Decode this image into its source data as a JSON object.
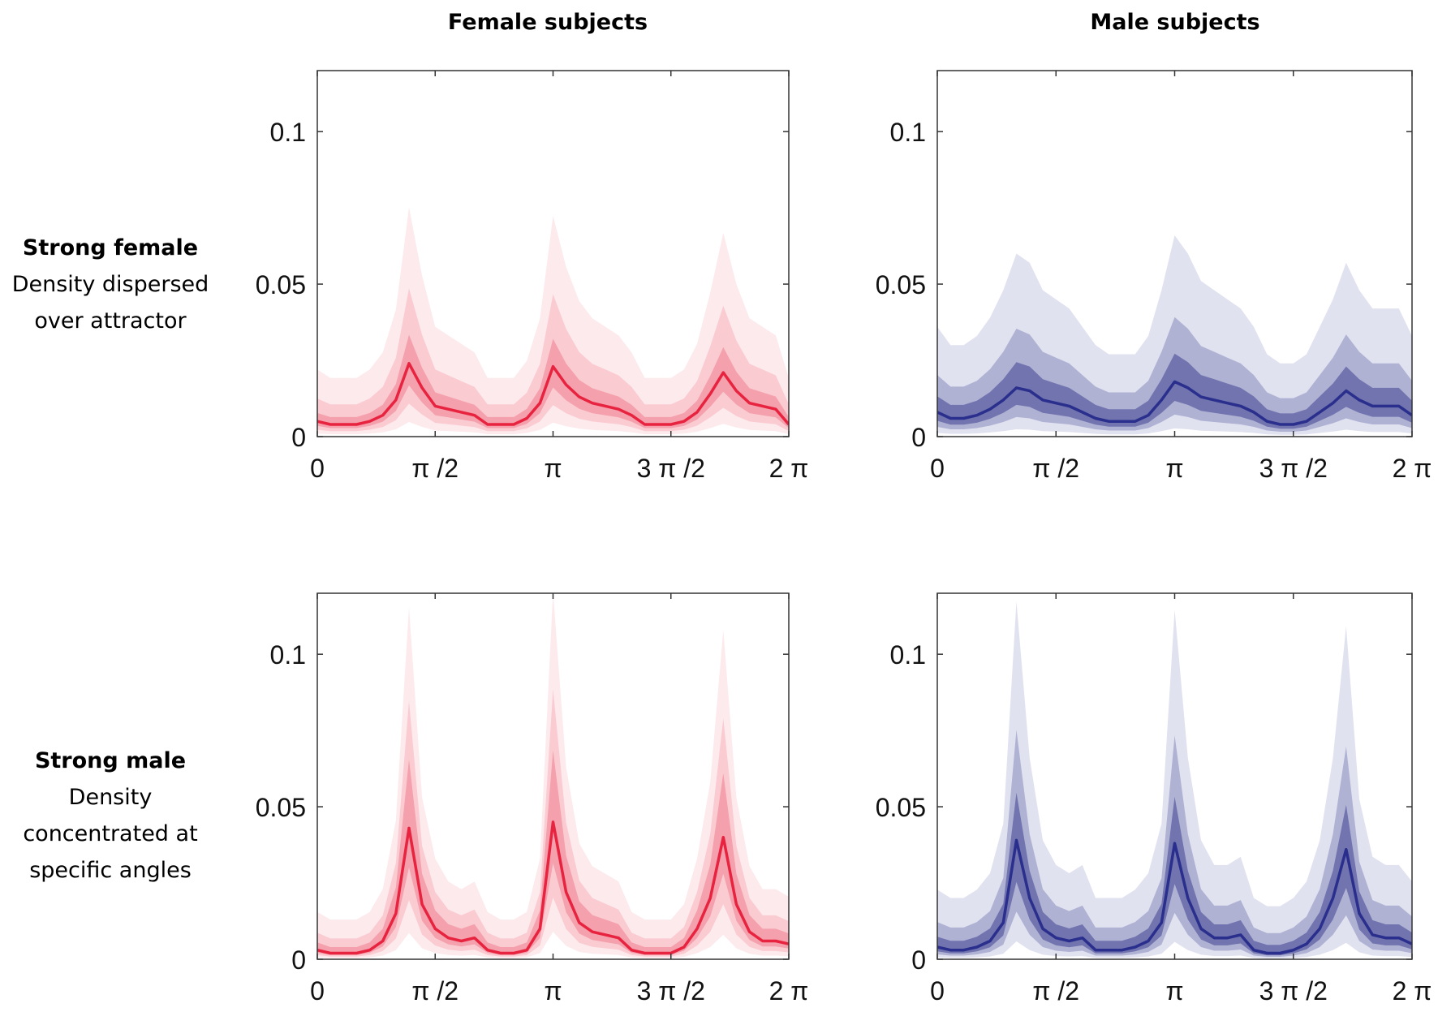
{
  "column_titles": [
    "Female subjects",
    "Male subjects"
  ],
  "row_labels": [
    {
      "title": "Strong female",
      "lines": [
        "Density dispersed",
        "over attractor"
      ]
    },
    {
      "title": "Strong male",
      "lines": [
        "Density",
        "concentrated at",
        "specific angles"
      ]
    }
  ],
  "colors": {
    "female": {
      "line": "#e8233f",
      "bands": [
        "#fdeaed",
        "#fbcbd2",
        "#f4a0ad"
      ]
    },
    "male": {
      "line": "#2a2e8c",
      "bands": [
        "#e1e2f0",
        "#b0b2d4",
        "#7174ae"
      ]
    }
  },
  "chart_data": [
    {
      "type": "area",
      "row": 0,
      "col": 0,
      "group": "female",
      "x_unit": "angle (rad), step = π/18",
      "xlim": [
        0,
        6.2832
      ],
      "ylim": [
        0,
        0.12
      ],
      "xticks": [
        {
          "value": 0,
          "label": "0"
        },
        {
          "value": 1.5708,
          "label": "π /2"
        },
        {
          "value": 3.1416,
          "label": "π"
        },
        {
          "value": 4.7124,
          "label": "3 π /2"
        },
        {
          "value": 6.2832,
          "label": "2 π"
        }
      ],
      "yticks": [
        {
          "value": 0,
          "label": "0"
        },
        {
          "value": 0.05,
          "label": "0.05"
        },
        {
          "value": 0.1,
          "label": "0.1"
        }
      ],
      "mean": [
        0.005,
        0.004,
        0.004,
        0.004,
        0.005,
        0.007,
        0.012,
        0.024,
        0.016,
        0.01,
        0.009,
        0.008,
        0.007,
        0.004,
        0.004,
        0.004,
        0.006,
        0.011,
        0.023,
        0.017,
        0.013,
        0.011,
        0.01,
        0.009,
        0.007,
        0.004,
        0.004,
        0.004,
        0.005,
        0.008,
        0.014,
        0.021,
        0.015,
        0.011,
        0.01,
        0.009,
        0.004
      ],
      "bands": [
        {
          "name": "outer",
          "hi_scale": 2.8,
          "hi_add": 0.008,
          "lo_scale": 0.2
        },
        {
          "name": "middle",
          "hi_scale": 1.9,
          "hi_add": 0.003,
          "lo_scale": 0.45
        },
        {
          "name": "inner",
          "hi_scale": 1.35,
          "hi_add": 0.001,
          "lo_scale": 0.7
        }
      ]
    },
    {
      "type": "area",
      "row": 0,
      "col": 1,
      "group": "male",
      "x_unit": "angle (rad), step = π/18",
      "xlim": [
        0,
        6.2832
      ],
      "ylim": [
        0,
        0.12
      ],
      "xticks": [
        {
          "value": 0,
          "label": "0"
        },
        {
          "value": 1.5708,
          "label": "π /2"
        },
        {
          "value": 3.1416,
          "label": "π"
        },
        {
          "value": 4.7124,
          "label": "3 π /2"
        },
        {
          "value": 6.2832,
          "label": "2 π"
        }
      ],
      "yticks": [
        {
          "value": 0,
          "label": "0"
        },
        {
          "value": 0.05,
          "label": "0.05"
        },
        {
          "value": 0.1,
          "label": "0.1"
        }
      ],
      "mean": [
        0.008,
        0.006,
        0.006,
        0.007,
        0.009,
        0.012,
        0.016,
        0.015,
        0.012,
        0.011,
        0.01,
        0.008,
        0.006,
        0.005,
        0.005,
        0.005,
        0.007,
        0.012,
        0.018,
        0.016,
        0.013,
        0.012,
        0.011,
        0.01,
        0.008,
        0.005,
        0.004,
        0.004,
        0.005,
        0.008,
        0.011,
        0.015,
        0.012,
        0.01,
        0.01,
        0.01,
        0.007
      ],
      "bands": [
        {
          "name": "outer",
          "hi_scale": 3.0,
          "hi_add": 0.012,
          "lo_scale": 0.15
        },
        {
          "name": "middle",
          "hi_scale": 1.9,
          "hi_add": 0.005,
          "lo_scale": 0.4
        },
        {
          "name": "inner",
          "hi_scale": 1.4,
          "hi_add": 0.002,
          "lo_scale": 0.65
        }
      ]
    },
    {
      "type": "area",
      "row": 1,
      "col": 0,
      "group": "female",
      "x_unit": "angle (rad), step = π/18",
      "xlim": [
        0,
        6.2832
      ],
      "ylim": [
        0,
        0.12
      ],
      "xticks": [
        {
          "value": 0,
          "label": "0"
        },
        {
          "value": 1.5708,
          "label": "π /2"
        },
        {
          "value": 3.1416,
          "label": "π"
        },
        {
          "value": 4.7124,
          "label": "3 π /2"
        },
        {
          "value": 6.2832,
          "label": "2 π"
        }
      ],
      "yticks": [
        {
          "value": 0,
          "label": "0"
        },
        {
          "value": 0.05,
          "label": "0.05"
        },
        {
          "value": 0.1,
          "label": "0.1"
        }
      ],
      "mean": [
        0.003,
        0.002,
        0.002,
        0.002,
        0.003,
        0.006,
        0.015,
        0.043,
        0.018,
        0.01,
        0.007,
        0.006,
        0.007,
        0.003,
        0.002,
        0.002,
        0.003,
        0.01,
        0.045,
        0.022,
        0.012,
        0.009,
        0.008,
        0.007,
        0.003,
        0.002,
        0.002,
        0.002,
        0.004,
        0.01,
        0.02,
        0.04,
        0.018,
        0.009,
        0.006,
        0.006,
        0.005
      ],
      "bands": [
        {
          "name": "outer",
          "hi_scale": 2.5,
          "hi_add": 0.008,
          "lo_scale": 0.2
        },
        {
          "name": "middle",
          "hi_scale": 1.9,
          "hi_add": 0.003,
          "lo_scale": 0.45
        },
        {
          "name": "inner",
          "hi_scale": 1.5,
          "hi_add": 0.001,
          "lo_scale": 0.7
        }
      ]
    },
    {
      "type": "area",
      "row": 1,
      "col": 1,
      "group": "male",
      "x_unit": "angle (rad), step = π/18",
      "xlim": [
        0,
        6.2832
      ],
      "ylim": [
        0,
        0.12
      ],
      "xticks": [
        {
          "value": 0,
          "label": "0"
        },
        {
          "value": 1.5708,
          "label": "π /2"
        },
        {
          "value": 3.1416,
          "label": "π"
        },
        {
          "value": 4.7124,
          "label": "3 π /2"
        },
        {
          "value": 6.2832,
          "label": "2 π"
        }
      ],
      "yticks": [
        {
          "value": 0,
          "label": "0"
        },
        {
          "value": 0.05,
          "label": "0.05"
        },
        {
          "value": 0.1,
          "label": "0.1"
        }
      ],
      "mean": [
        0.004,
        0.003,
        0.003,
        0.004,
        0.006,
        0.012,
        0.039,
        0.02,
        0.01,
        0.007,
        0.006,
        0.007,
        0.003,
        0.003,
        0.003,
        0.004,
        0.006,
        0.012,
        0.038,
        0.02,
        0.01,
        0.007,
        0.007,
        0.008,
        0.003,
        0.002,
        0.002,
        0.003,
        0.005,
        0.01,
        0.02,
        0.036,
        0.015,
        0.008,
        0.007,
        0.007,
        0.005
      ],
      "bands": [
        {
          "name": "outer",
          "hi_scale": 2.7,
          "hi_add": 0.012,
          "lo_scale": 0.15
        },
        {
          "name": "middle",
          "hi_scale": 1.8,
          "hi_add": 0.005,
          "lo_scale": 0.4
        },
        {
          "name": "inner",
          "hi_scale": 1.35,
          "hi_add": 0.002,
          "lo_scale": 0.65
        }
      ]
    }
  ]
}
